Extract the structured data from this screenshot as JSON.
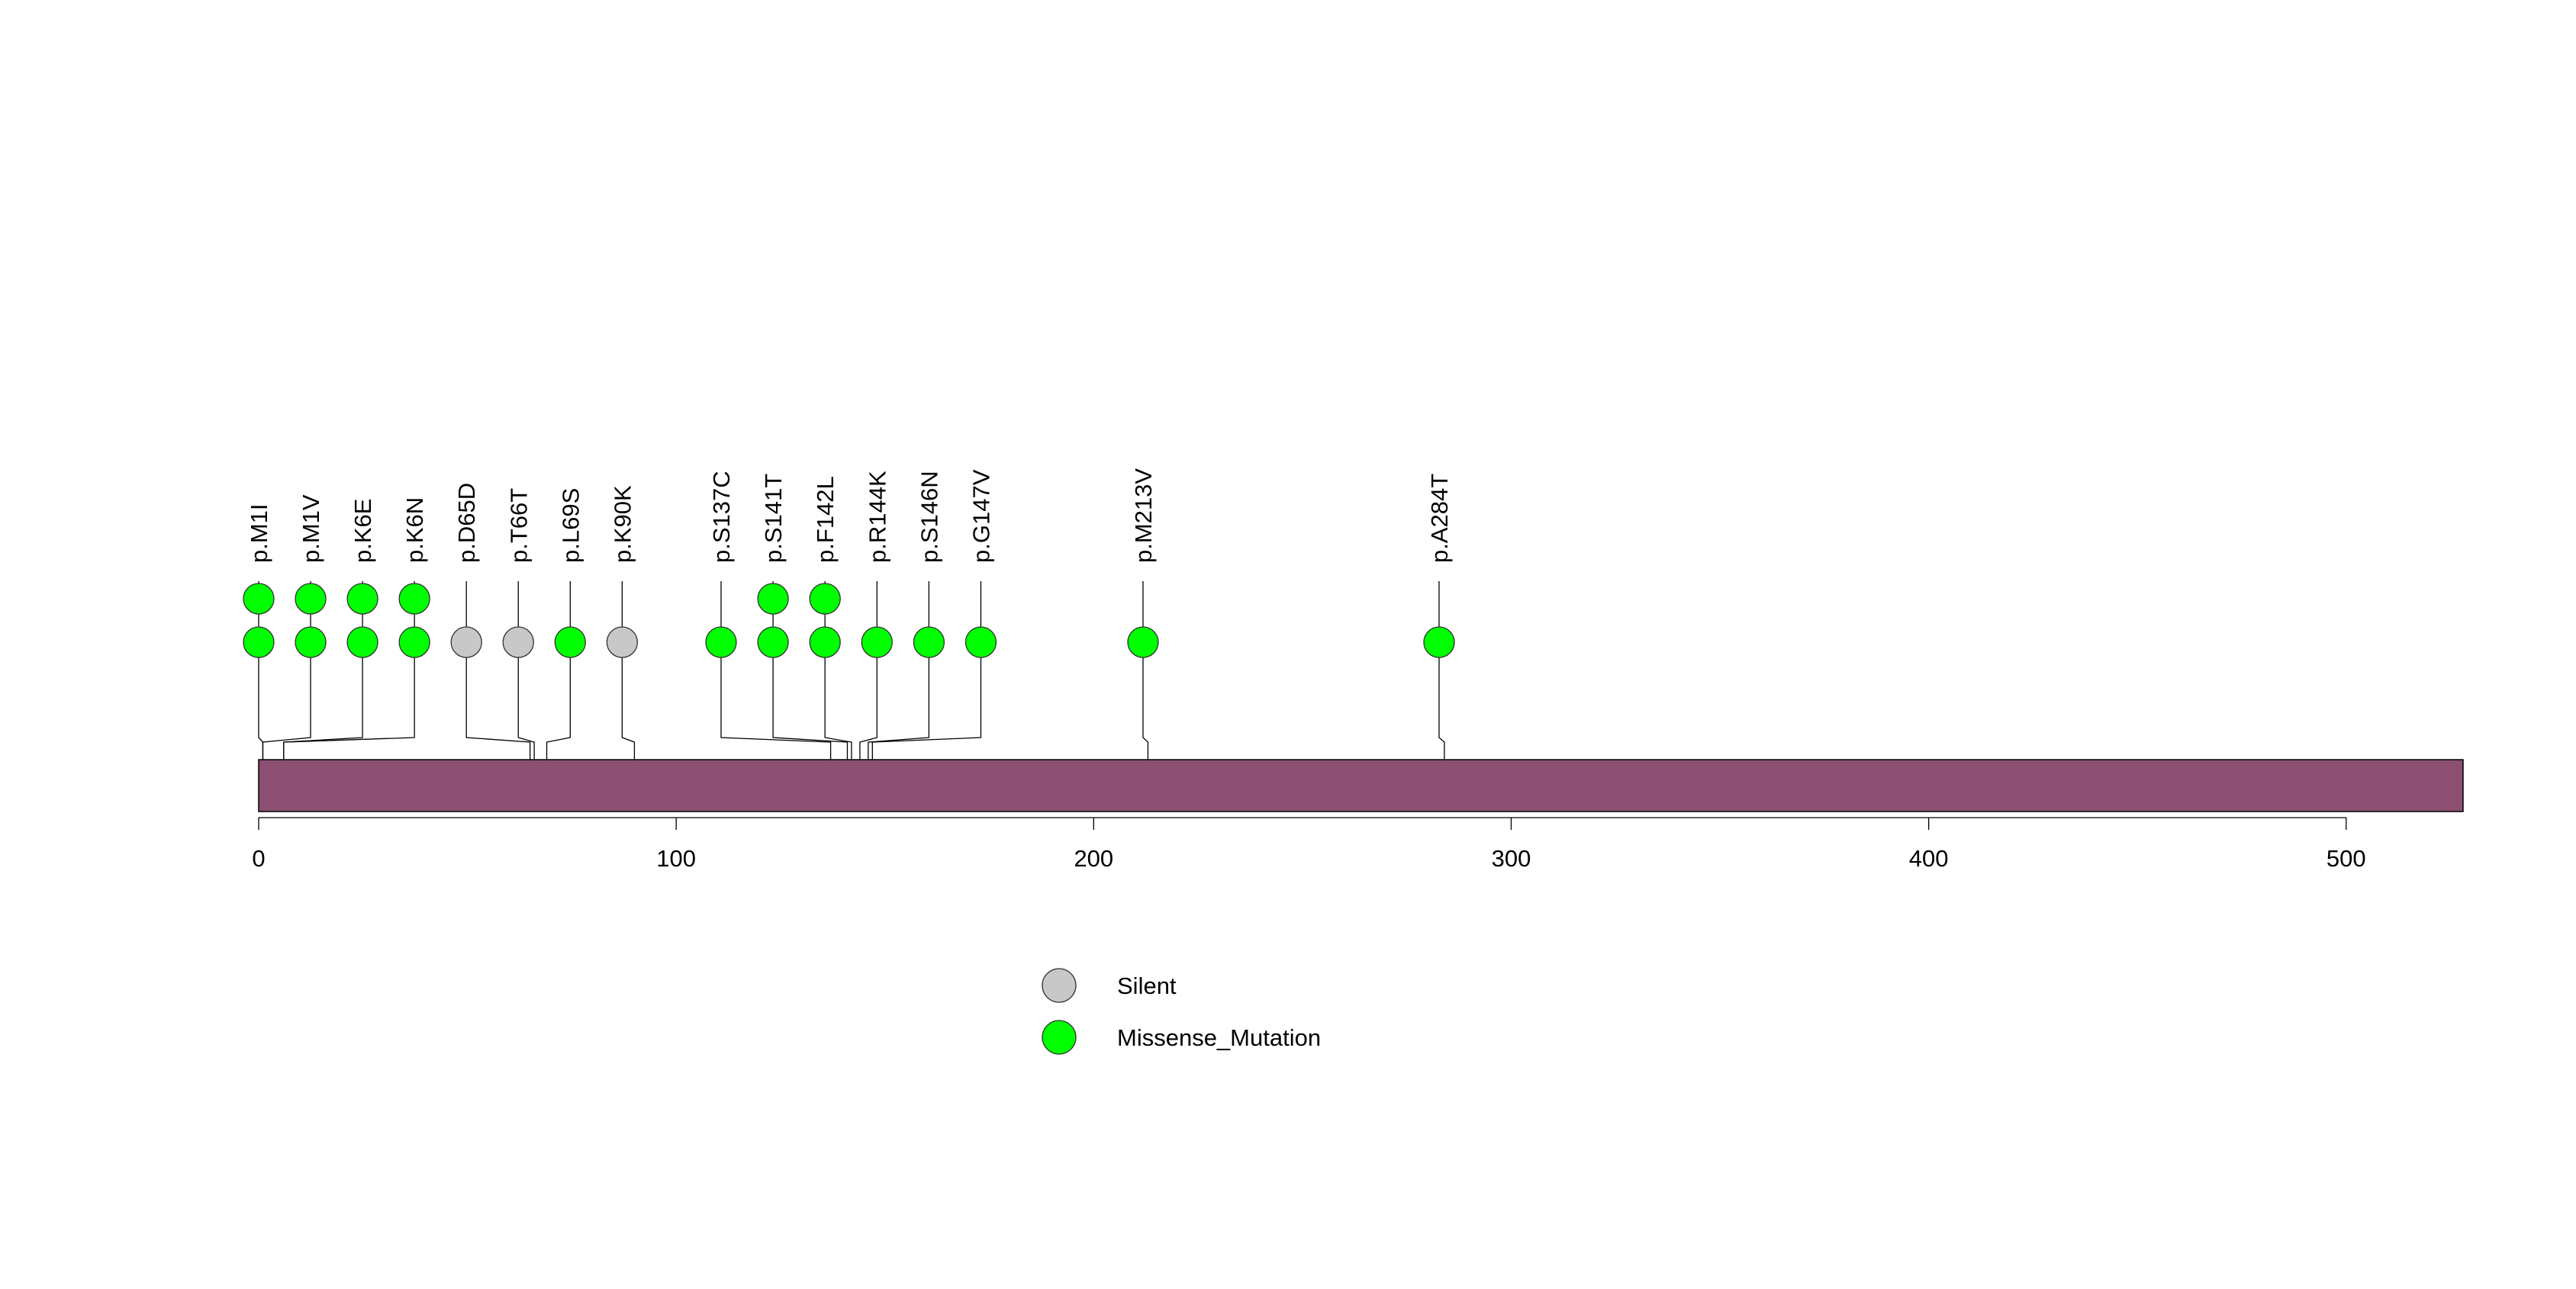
{
  "chart_data": {
    "type": "lollipop",
    "protein_length": 528,
    "xlim": [
      0,
      528
    ],
    "x_ticks": [
      0,
      100,
      200,
      300,
      400,
      500
    ],
    "bar_color": "#8c4f72",
    "categories": {
      "Silent": {
        "label": "Silent",
        "color": "#c8c8c8"
      },
      "Missense_Mutation": {
        "label": "Missense_Mutation",
        "color": "#00ff00"
      }
    },
    "legend": [
      {
        "type": "Silent",
        "label": "Silent"
      },
      {
        "type": "Missense_Mutation",
        "label": "Missense_Mutation"
      }
    ],
    "mutations": [
      {
        "label": "p.M1I",
        "position": 1,
        "count": 2,
        "type": "Missense_Mutation"
      },
      {
        "label": "p.M1V",
        "position": 1,
        "count": 2,
        "type": "Missense_Mutation"
      },
      {
        "label": "p.K6E",
        "position": 6,
        "count": 2,
        "type": "Missense_Mutation"
      },
      {
        "label": "p.K6N",
        "position": 6,
        "count": 2,
        "type": "Missense_Mutation"
      },
      {
        "label": "p.D65D",
        "position": 65,
        "count": 1,
        "type": "Silent"
      },
      {
        "label": "p.T66T",
        "position": 66,
        "count": 1,
        "type": "Silent"
      },
      {
        "label": "p.L69S",
        "position": 69,
        "count": 1,
        "type": "Missense_Mutation"
      },
      {
        "label": "p.K90K",
        "position": 90,
        "count": 1,
        "type": "Silent"
      },
      {
        "label": "p.S137C",
        "position": 137,
        "count": 1,
        "type": "Missense_Mutation"
      },
      {
        "label": "p.S141T",
        "position": 141,
        "count": 2,
        "type": "Missense_Mutation"
      },
      {
        "label": "p.F142L",
        "position": 142,
        "count": 2,
        "type": "Missense_Mutation"
      },
      {
        "label": "p.R144K",
        "position": 144,
        "count": 1,
        "type": "Missense_Mutation"
      },
      {
        "label": "p.S146N",
        "position": 146,
        "count": 1,
        "type": "Missense_Mutation"
      },
      {
        "label": "p.G147V",
        "position": 147,
        "count": 1,
        "type": "Missense_Mutation"
      },
      {
        "label": "p.M213V",
        "position": 213,
        "count": 1,
        "type": "Missense_Mutation"
      },
      {
        "label": "p.A284T",
        "position": 284,
        "count": 1,
        "type": "Missense_Mutation"
      }
    ]
  }
}
